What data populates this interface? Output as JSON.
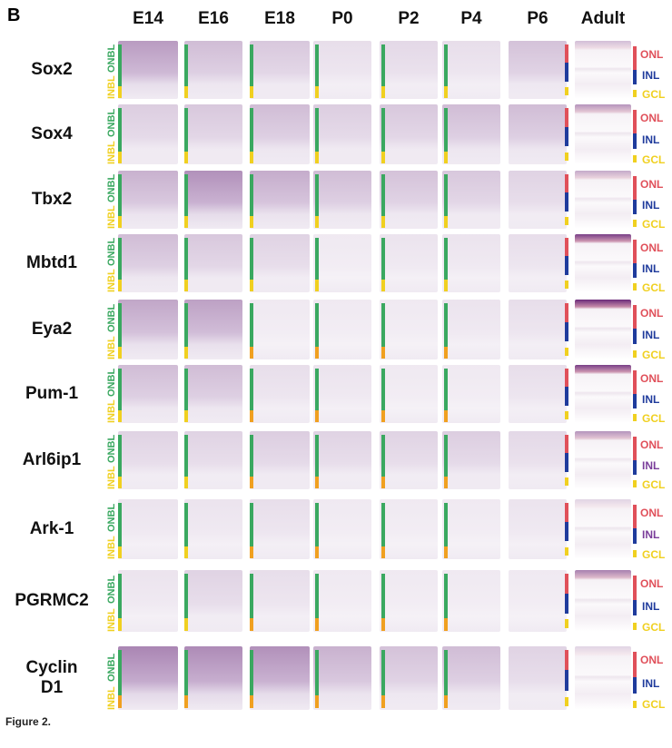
{
  "panel_label": "B",
  "stages": [
    "E14",
    "E16",
    "E18",
    "P0",
    "P2",
    "P4",
    "P6",
    "Adult"
  ],
  "genes": [
    "Sox2",
    "Sox4",
    "Tbx2",
    "Mbtd1",
    "Eya2",
    "Pum-1",
    "Arl6ip1",
    "Ark-1",
    "PGRMC2",
    "Cyclin D1"
  ],
  "developing_layers": {
    "outer": "ONBL",
    "inner": "INBL"
  },
  "adult_layers": {
    "onl": "ONL",
    "inl": "INL",
    "gcl": "GCL"
  },
  "colors": {
    "onbl": "#3aa860",
    "inbl": "#f0d020",
    "onl": "#e0505a",
    "inl": "#1f3b9c",
    "inl_alt": "#7a3d9a",
    "gcl": "#f0d020",
    "inbl_bar_late": "#f0a020",
    "stain": "#6a2a7a"
  },
  "caption": "Figure 2."
}
